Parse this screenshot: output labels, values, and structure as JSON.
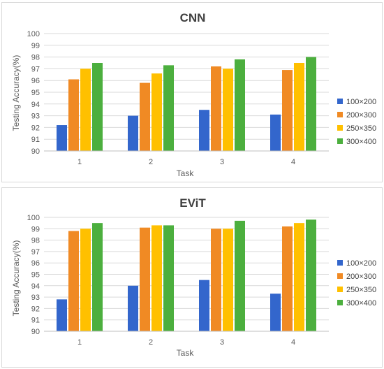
{
  "chart_data": [
    {
      "type": "bar",
      "title": "CNN",
      "xlabel": "Task",
      "ylabel": "Testing Accuracy(%)",
      "ylim": [
        90,
        100
      ],
      "yticks": [
        90,
        91,
        92,
        93,
        94,
        95,
        96,
        97,
        98,
        99,
        100
      ],
      "categories": [
        "1",
        "2",
        "3",
        "4"
      ],
      "grid": true,
      "legend_position": "right",
      "series": [
        {
          "name": "100×200",
          "color": "#3366cc",
          "values": [
            92.2,
            93.0,
            93.5,
            93.1
          ]
        },
        {
          "name": "200×300",
          "color": "#f08a24",
          "values": [
            96.1,
            95.8,
            97.2,
            96.9
          ]
        },
        {
          "name": "250×350",
          "color": "#ffc000",
          "values": [
            97.0,
            96.6,
            97.0,
            97.5
          ]
        },
        {
          "name": "300×400",
          "color": "#4caf3e",
          "values": [
            97.5,
            97.3,
            97.8,
            98.0
          ]
        }
      ]
    },
    {
      "type": "bar",
      "title": "EViT",
      "xlabel": "Task",
      "ylabel": "Testing Accuracy(%)",
      "ylim": [
        90,
        100
      ],
      "yticks": [
        90,
        91,
        92,
        93,
        94,
        95,
        96,
        97,
        98,
        99,
        100
      ],
      "categories": [
        "1",
        "2",
        "3",
        "4"
      ],
      "grid": true,
      "legend_position": "right",
      "series": [
        {
          "name": "100×200",
          "color": "#3366cc",
          "values": [
            92.8,
            94.0,
            94.5,
            93.3
          ]
        },
        {
          "name": "200×300",
          "color": "#f08a24",
          "values": [
            98.8,
            99.1,
            99.0,
            99.2
          ]
        },
        {
          "name": "250×350",
          "color": "#ffc000",
          "values": [
            99.0,
            99.3,
            99.0,
            99.5
          ]
        },
        {
          "name": "300×400",
          "color": "#4caf3e",
          "values": [
            99.5,
            99.3,
            99.7,
            99.8
          ]
        }
      ]
    }
  ]
}
